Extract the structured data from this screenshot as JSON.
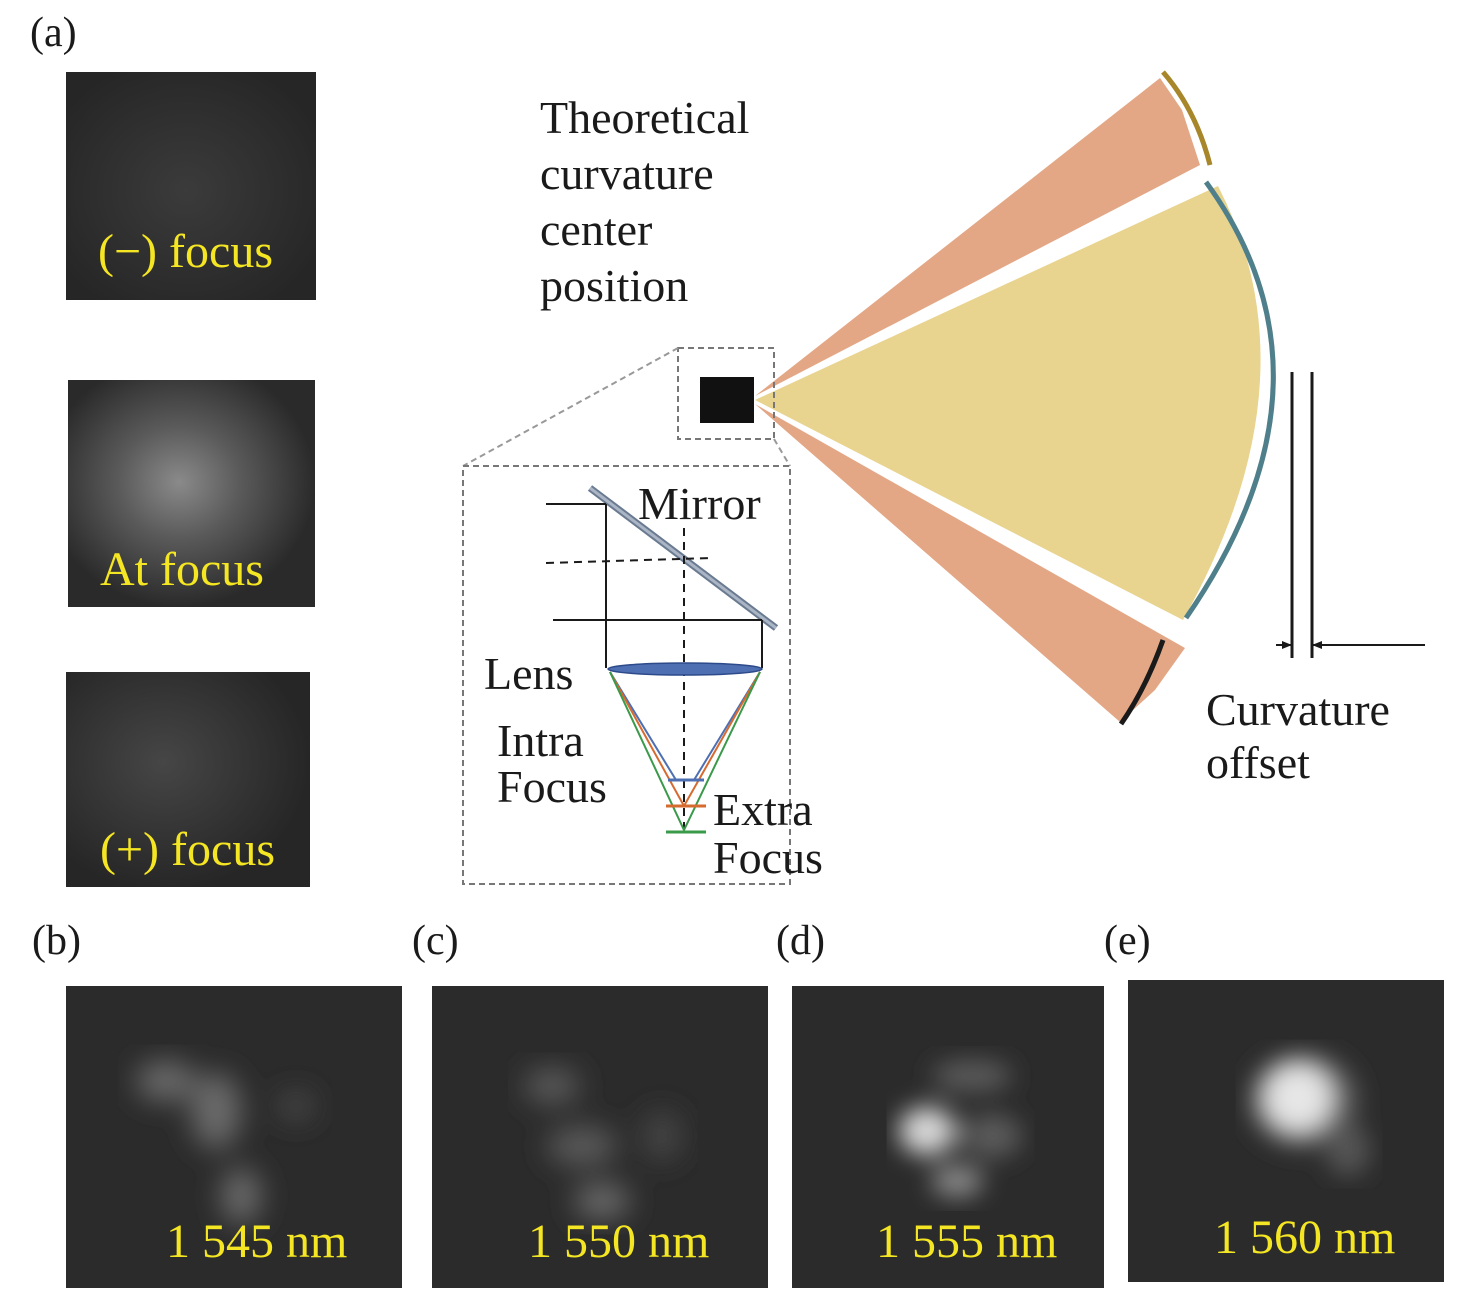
{
  "panel_a": {
    "label": "(a)",
    "focus_images": [
      {
        "caption": "(−) focus"
      },
      {
        "caption": "At focus"
      },
      {
        "caption": "(+) focus"
      }
    ]
  },
  "diagram": {
    "center_label": [
      "Theoretical",
      "curvature",
      "center",
      "position"
    ],
    "inset": {
      "mirror_label": "Mirror",
      "lens_label": "Lens",
      "intra_focus_label": [
        "Intra",
        "Focus"
      ],
      "extra_focus_label": [
        "Extra",
        "Focus"
      ]
    },
    "offset_label": [
      "Curvature",
      "offset"
    ],
    "colors": {
      "main_wedge": "#e8d48f",
      "side_wedges": "#e3a786",
      "main_mirror_arc": "#4e7f8a",
      "top_arc": "#a8862a",
      "bottom_arc": "#1a1a1a",
      "intra_ray": "#4f6fb3",
      "mid_ray": "#d66b2f",
      "extra_ray": "#3a9a4a"
    }
  },
  "spectral_panels": [
    {
      "label": "(b)",
      "caption": "1 545 nm"
    },
    {
      "label": "(c)",
      "caption": "1 550 nm"
    },
    {
      "label": "(d)",
      "caption": "1 555 nm"
    },
    {
      "label": "(e)",
      "caption": "1 560 nm"
    }
  ],
  "caption_color": "#f5e623"
}
